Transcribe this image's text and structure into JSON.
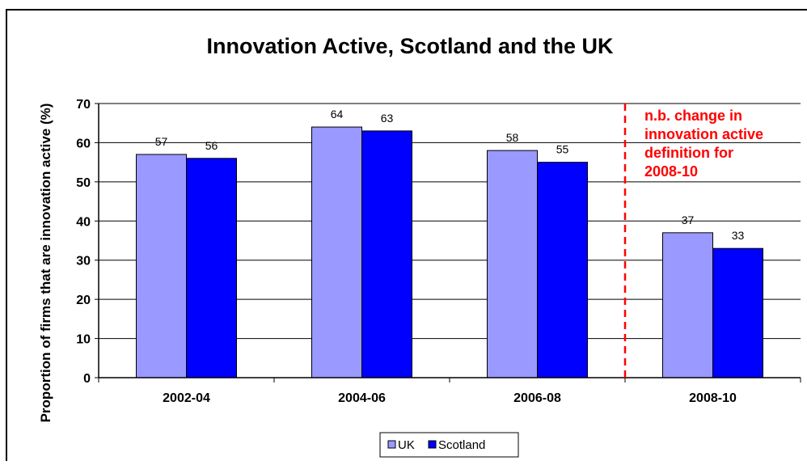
{
  "chart_data": {
    "type": "bar",
    "title": "Innovation Active, Scotland and the UK",
    "ylabel": "Proportion of firms that are innovation active (%)",
    "xlabel": "",
    "categories": [
      "2002-04",
      "2004-06",
      "2006-08",
      "2008-10"
    ],
    "series": [
      {
        "name": "UK",
        "values": [
          57,
          64,
          58,
          37
        ],
        "data_labels": [
          "57",
          "64",
          "58",
          "37"
        ],
        "color": "#9999ff"
      },
      {
        "name": "Scotland",
        "values": [
          56,
          63,
          55,
          33
        ],
        "data_labels": [
          "56",
          "63",
          "55",
          "33"
        ],
        "color": "#0000ff"
      }
    ],
    "ylim": [
      0,
      70
    ],
    "yticks": [
      "0",
      "10",
      "20",
      "30",
      "40",
      "50",
      "60",
      "70"
    ],
    "grid": true,
    "legend": "bottom",
    "annotation": {
      "lines": [
        "n.b. change in",
        "innovation active",
        "definition for",
        "2008-10"
      ],
      "color": "#ff0000",
      "divider_between": [
        "2006-08",
        "2008-10"
      ]
    }
  }
}
